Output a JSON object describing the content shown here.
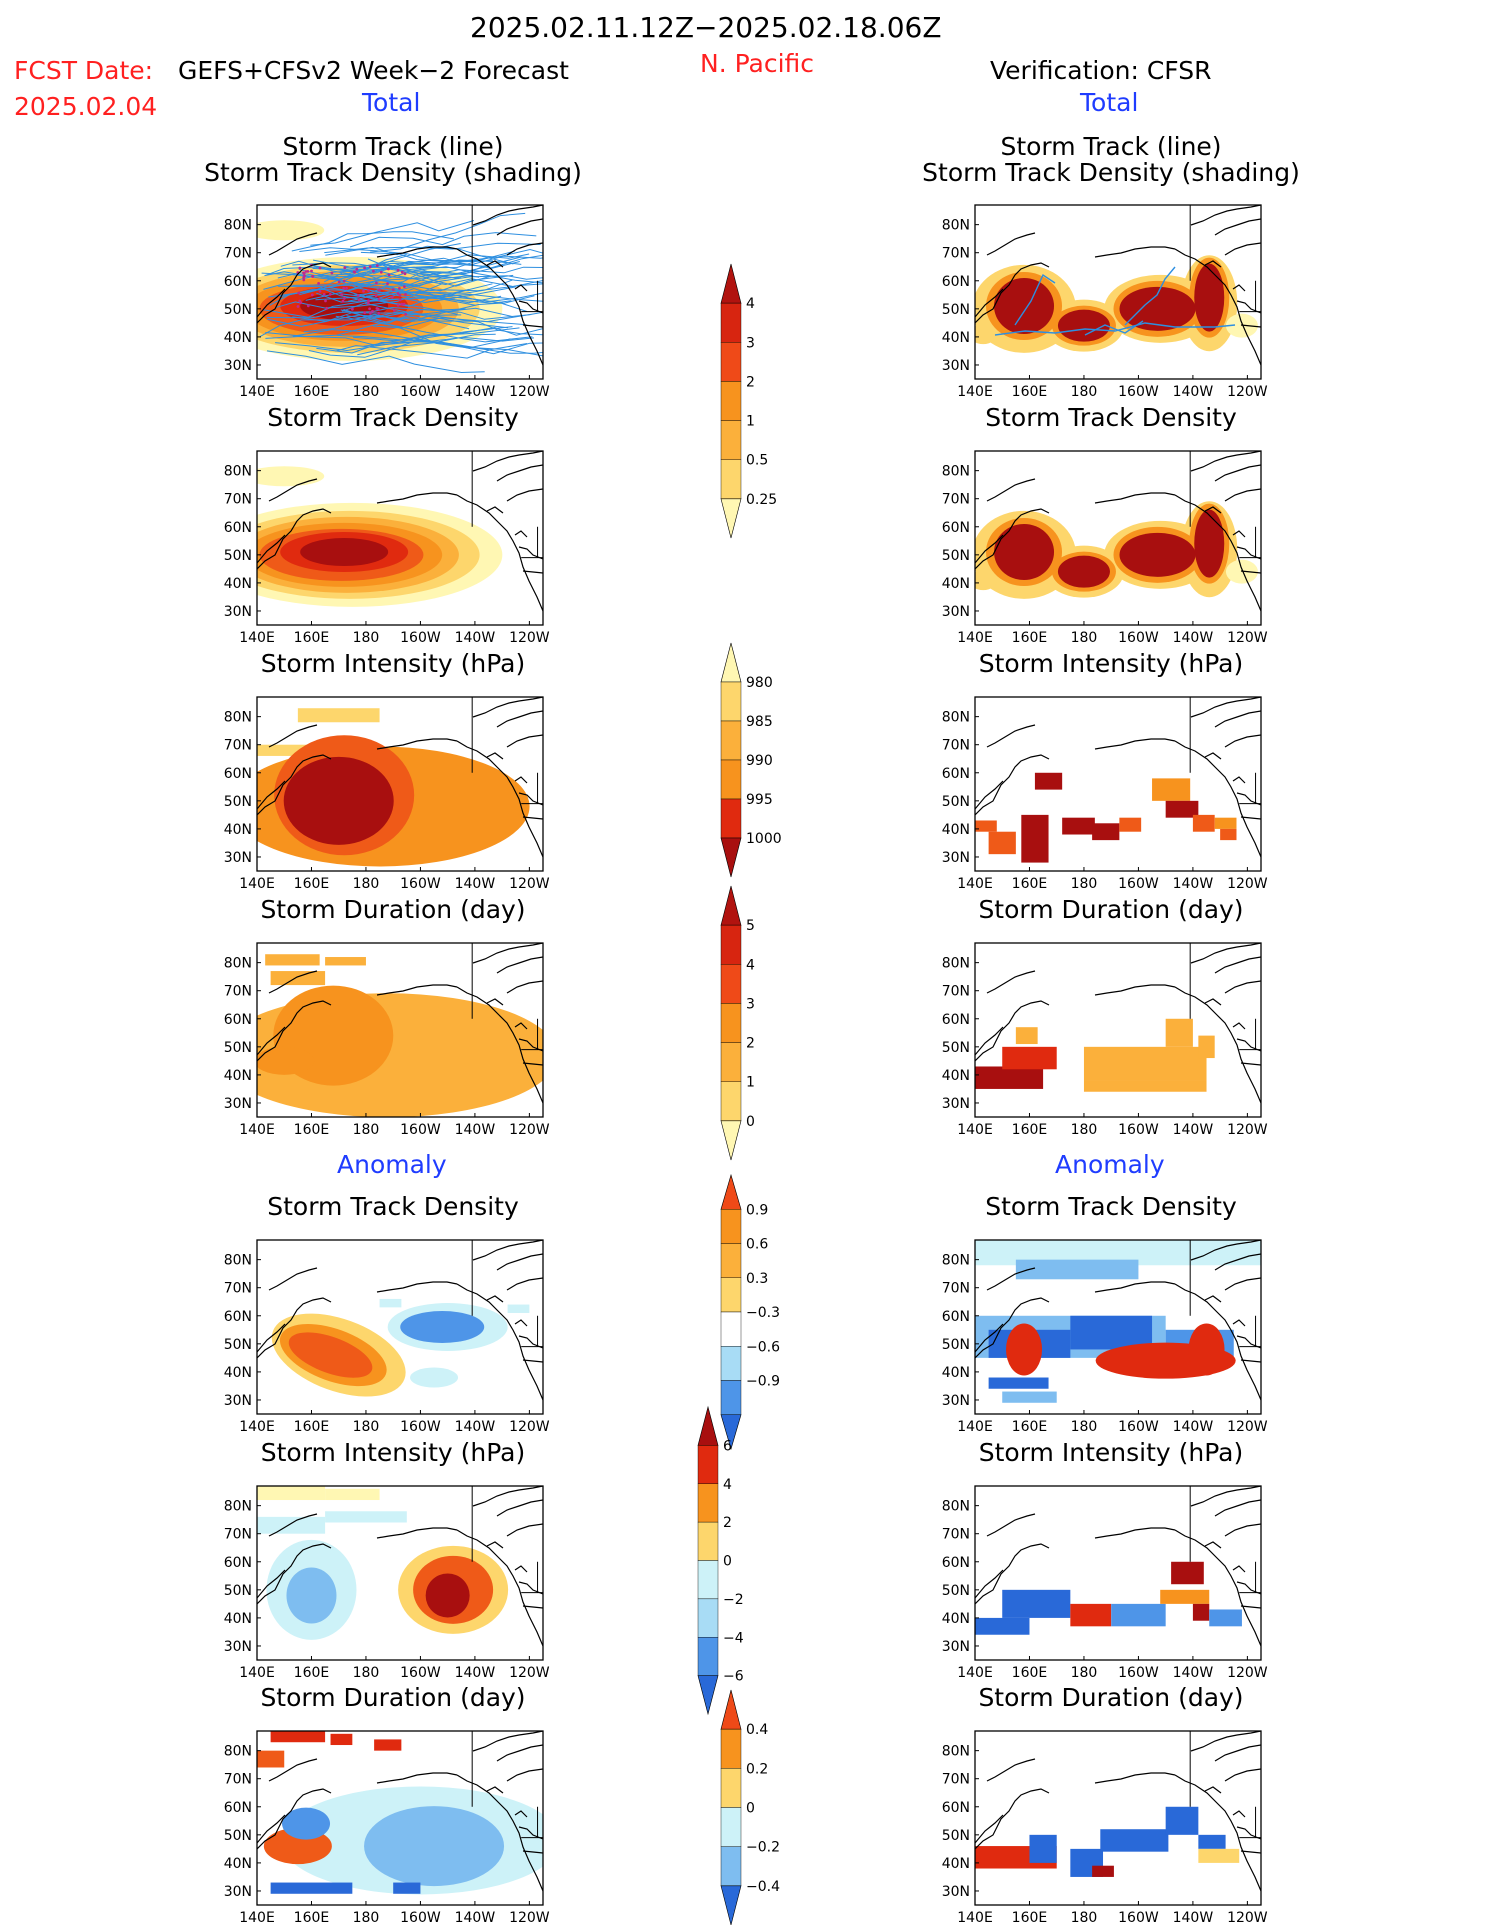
{
  "header": {
    "period": "2025.02.11.12Z−2025.02.18.06Z",
    "fcst_label": "FCST Date:",
    "fcst_model": "GEFS+CFSv2 Week−2 Forecast",
    "fcst_date": "2025.02.04",
    "region": "N. Pacific",
    "verification": "Verification: CFSR"
  },
  "sections": {
    "total": "Total",
    "anomaly": "Anomaly"
  },
  "panel_titles": {
    "track_line": "Storm Track (line)",
    "track_shading": "Storm Track Density (shading)",
    "density": "Storm Track Density",
    "intensity": "Storm Intensity (hPa)",
    "duration": "Storm Duration (day)"
  },
  "axes": {
    "lon_labels": [
      "140E",
      "160E",
      "180",
      "160W",
      "140W",
      "120W"
    ],
    "lat_labels": [
      "80N",
      "70N",
      "60N",
      "50N",
      "40N",
      "30N"
    ]
  },
  "colorbars": {
    "density_total": [
      "0.25",
      "0.5",
      "1",
      "2",
      "3",
      "4"
    ],
    "intensity_total": [
      "980",
      "985",
      "990",
      "995",
      "1000"
    ],
    "duration_total": [
      "0",
      "1",
      "2",
      "3",
      "4",
      "5"
    ],
    "density_anom": [
      "−0.9",
      "−0.6",
      "−0.3",
      "0.3",
      "0.6",
      "0.9"
    ],
    "intensity_anom": [
      "−6",
      "−4",
      "−2",
      "0",
      "2",
      "4",
      "6"
    ],
    "duration_anom": [
      "−0.4",
      "−0.2",
      "0",
      "0.2",
      "0.4"
    ]
  },
  "colors": {
    "pos": [
      "#fff7b3",
      "#fdd66c",
      "#fbb03b",
      "#f7931e",
      "#ef5a18",
      "#e02a0f",
      "#a80f0f"
    ],
    "neg": [
      "#cdf2f8",
      "#a8dcf5",
      "#7ebdf0",
      "#4e95e8",
      "#2969d8",
      "#1a47b8"
    ]
  }
}
